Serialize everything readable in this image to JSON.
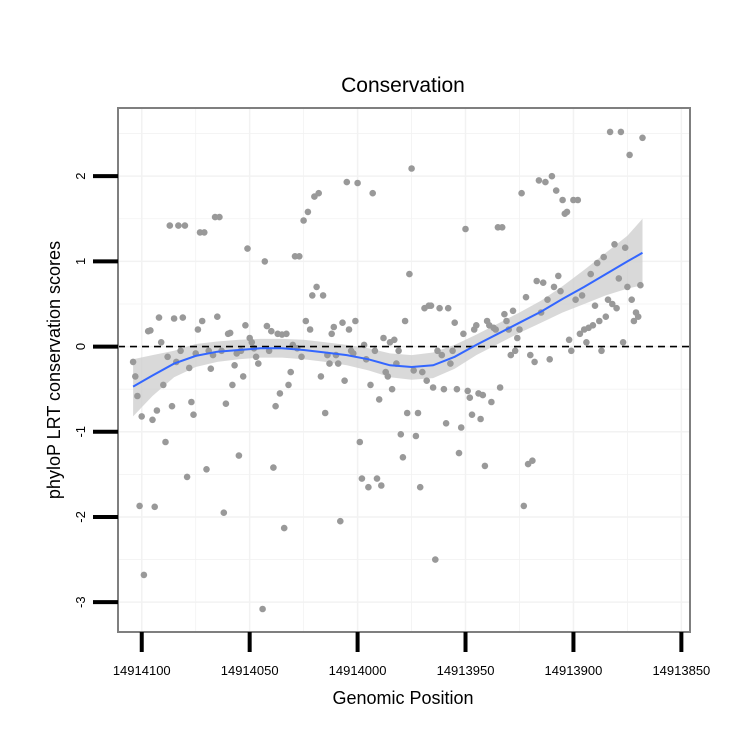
{
  "chart_data": {
    "type": "scatter",
    "title": "Conservation",
    "xlabel": "Genomic Position",
    "ylabel": "phyloP LRT conservation scores",
    "x_reversed": true,
    "xlim": [
      14914111,
      14913846
    ],
    "ylim": [
      -3.35,
      2.8
    ],
    "x_ticks": [
      14914100,
      14914050,
      14914000,
      14913950,
      14913900,
      14913850
    ],
    "x_tick_labels": [
      "14914100",
      "14914050",
      "14914000",
      "14913950",
      "14913900",
      "14913850"
    ],
    "y_ticks": [
      -3,
      -2,
      -1,
      0,
      1,
      2
    ],
    "y_tick_labels": [
      "-3",
      "-2",
      "-1",
      "0",
      "1",
      "2"
    ],
    "grid": true,
    "reference_line": {
      "y": 0,
      "style": "dashed",
      "color": "#000000"
    },
    "colors": {
      "points": "#999999",
      "smooth": "#3366ff",
      "band": "#cccccc",
      "panel_border": "#7f7f7f",
      "grid": "#f2f2f2"
    },
    "points": [
      [
        14914104,
        -0.18
      ],
      [
        14914103,
        -0.35
      ],
      [
        14914102,
        -0.58
      ],
      [
        14914101,
        -1.87
      ],
      [
        14914100,
        -0.82
      ],
      [
        14914099,
        -2.68
      ],
      [
        14914097,
        0.18
      ],
      [
        14914096,
        0.19
      ],
      [
        14914095,
        -0.86
      ],
      [
        14914094,
        -1.88
      ],
      [
        14914093,
        -0.75
      ],
      [
        14914092,
        0.34
      ],
      [
        14914091,
        0.05
      ],
      [
        14914090,
        -0.45
      ],
      [
        14914089,
        -1.12
      ],
      [
        14914088,
        -0.12
      ],
      [
        14914087,
        1.42
      ],
      [
        14914086,
        -0.7
      ],
      [
        14914085,
        0.33
      ],
      [
        14914084,
        -0.18
      ],
      [
        14914083,
        1.42
      ],
      [
        14914082,
        -0.05
      ],
      [
        14914081,
        0.34
      ],
      [
        14914080,
        1.42
      ],
      [
        14914079,
        -1.53
      ],
      [
        14914078,
        -0.25
      ],
      [
        14914077,
        -0.65
      ],
      [
        14914076,
        -0.8
      ],
      [
        14914075,
        -0.08
      ],
      [
        14914074,
        0.2
      ],
      [
        14914073,
        1.34
      ],
      [
        14914072,
        0.3
      ],
      [
        14914071,
        1.34
      ],
      [
        14914070,
        -1.44
      ],
      [
        14914069,
        -0.05
      ],
      [
        14914068,
        -0.26
      ],
      [
        14914067,
        -0.1
      ],
      [
        14914066,
        1.52
      ],
      [
        14914065,
        0.35
      ],
      [
        14914064,
        1.52
      ],
      [
        14914063,
        -0.05
      ],
      [
        14914062,
        -1.95
      ],
      [
        14914061,
        -0.67
      ],
      [
        14914060,
        0.15
      ],
      [
        14914059,
        0.16
      ],
      [
        14914058,
        -0.45
      ],
      [
        14914057,
        -0.22
      ],
      [
        14914056,
        -0.08
      ],
      [
        14914055,
        -1.28
      ],
      [
        14914054,
        -0.05
      ],
      [
        14914053,
        -0.35
      ],
      [
        14914052,
        0.25
      ],
      [
        14914051,
        1.15
      ],
      [
        14914050,
        0.1
      ],
      [
        14914049,
        0.05
      ],
      [
        14914048,
        -0.02
      ],
      [
        14914047,
        -0.12
      ],
      [
        14914046,
        -0.2
      ],
      [
        14914044,
        -3.08
      ],
      [
        14914043,
        1.0
      ],
      [
        14914042,
        0.24
      ],
      [
        14914041,
        -0.05
      ],
      [
        14914040,
        0.18
      ],
      [
        14914039,
        -1.42
      ],
      [
        14914038,
        -0.7
      ],
      [
        14914037,
        0.15
      ],
      [
        14914036,
        -0.55
      ],
      [
        14914035,
        0.14
      ],
      [
        14914034,
        -2.13
      ],
      [
        14914033,
        0.15
      ],
      [
        14914032,
        -0.45
      ],
      [
        14914031,
        -0.3
      ],
      [
        14914030,
        0.02
      ],
      [
        14914029,
        1.06
      ],
      [
        14914028,
        -0.02
      ],
      [
        14914027,
        1.06
      ],
      [
        14914026,
        -0.12
      ],
      [
        14914025,
        1.48
      ],
      [
        14914024,
        0.3
      ],
      [
        14914023,
        1.58
      ],
      [
        14914022,
        0.2
      ],
      [
        14914021,
        0.6
      ],
      [
        14914020,
        1.76
      ],
      [
        14914019,
        0.7
      ],
      [
        14914018,
        1.8
      ],
      [
        14914017,
        -0.35
      ],
      [
        14914016,
        0.6
      ],
      [
        14914015,
        -0.78
      ],
      [
        14914014,
        -0.1
      ],
      [
        14914013,
        -0.2
      ],
      [
        14914012,
        0.15
      ],
      [
        14914011,
        0.23
      ],
      [
        14914010,
        -0.1
      ],
      [
        14914009,
        -0.2
      ],
      [
        14914008,
        -2.05
      ],
      [
        14914007,
        0.28
      ],
      [
        14914006,
        -0.4
      ],
      [
        14914005,
        1.93
      ],
      [
        14914004,
        0.2
      ],
      [
        14914003,
        -0.05
      ],
      [
        14914002,
        -0.08
      ],
      [
        14914001,
        0.3
      ],
      [
        14914000,
        1.92
      ],
      [
        14913999,
        -1.12
      ],
      [
        14913998,
        -1.55
      ],
      [
        14913997,
        0.02
      ],
      [
        14913996,
        -0.15
      ],
      [
        14913995,
        -1.65
      ],
      [
        14913994,
        -0.45
      ],
      [
        14913993,
        1.8
      ],
      [
        14913992,
        -0.05
      ],
      [
        14913991,
        -1.55
      ],
      [
        14913990,
        -0.62
      ],
      [
        14913989,
        -1.63
      ],
      [
        14913988,
        0.1
      ],
      [
        14913987,
        -0.3
      ],
      [
        14913986,
        -0.35
      ],
      [
        14913985,
        0.05
      ],
      [
        14913984,
        -0.5
      ],
      [
        14913983,
        0.08
      ],
      [
        14913982,
        -0.2
      ],
      [
        14913981,
        -0.05
      ],
      [
        14913980,
        -1.03
      ],
      [
        14913979,
        -1.3
      ],
      [
        14913978,
        0.3
      ],
      [
        14913977,
        -0.78
      ],
      [
        14913976,
        0.85
      ],
      [
        14913975,
        2.09
      ],
      [
        14913974,
        -0.28
      ],
      [
        14913973,
        -1.05
      ],
      [
        14913972,
        -0.78
      ],
      [
        14913971,
        -1.65
      ],
      [
        14913970,
        -0.3
      ],
      [
        14913969,
        0.45
      ],
      [
        14913968,
        -0.4
      ],
      [
        14913967,
        0.48
      ],
      [
        14913966,
        0.48
      ],
      [
        14913965,
        -0.48
      ],
      [
        14913964,
        -2.5
      ],
      [
        14913963,
        -0.05
      ],
      [
        14913962,
        0.45
      ],
      [
        14913961,
        -0.1
      ],
      [
        14913960,
        -0.5
      ],
      [
        14913959,
        -0.9
      ],
      [
        14913958,
        0.45
      ],
      [
        14913957,
        -0.2
      ],
      [
        14913956,
        -0.05
      ],
      [
        14913955,
        0.28
      ],
      [
        14913954,
        -0.5
      ],
      [
        14913953,
        -1.25
      ],
      [
        14913952,
        -0.95
      ],
      [
        14913951,
        0.15
      ],
      [
        14913950,
        1.38
      ],
      [
        14913949,
        -0.52
      ],
      [
        14913948,
        -0.6
      ],
      [
        14913947,
        -0.8
      ],
      [
        14913946,
        0.2
      ],
      [
        14913945,
        0.25
      ],
      [
        14913944,
        -0.55
      ],
      [
        14913943,
        -0.85
      ],
      [
        14913942,
        -0.57
      ],
      [
        14913941,
        -1.4
      ],
      [
        14913940,
        0.3
      ],
      [
        14913939,
        0.25
      ],
      [
        14913938,
        -0.65
      ],
      [
        14913937,
        0.22
      ],
      [
        14913936,
        0.2
      ],
      [
        14913935,
        1.4
      ],
      [
        14913934,
        -0.48
      ],
      [
        14913933,
        1.4
      ],
      [
        14913932,
        0.38
      ],
      [
        14913931,
        0.3
      ],
      [
        14913930,
        0.2
      ],
      [
        14913929,
        -0.1
      ],
      [
        14913928,
        0.42
      ],
      [
        14913927,
        -0.05
      ],
      [
        14913926,
        0.1
      ],
      [
        14913925,
        0.2
      ],
      [
        14913924,
        1.8
      ],
      [
        14913923,
        -1.87
      ],
      [
        14913922,
        0.58
      ],
      [
        14913921,
        -1.38
      ],
      [
        14913920,
        -0.1
      ],
      [
        14913919,
        -1.34
      ],
      [
        14913918,
        -0.18
      ],
      [
        14913917,
        0.77
      ],
      [
        14913916,
        1.95
      ],
      [
        14913915,
        0.4
      ],
      [
        14913914,
        0.75
      ],
      [
        14913913,
        1.93
      ],
      [
        14913912,
        0.55
      ],
      [
        14913911,
        -0.15
      ],
      [
        14913910,
        2.0
      ],
      [
        14913909,
        0.7
      ],
      [
        14913908,
        1.83
      ],
      [
        14913907,
        0.83
      ],
      [
        14913906,
        0.65
      ],
      [
        14913905,
        1.72
      ],
      [
        14913904,
        1.56
      ],
      [
        14913903,
        1.58
      ],
      [
        14913902,
        0.08
      ],
      [
        14913901,
        -0.05
      ],
      [
        14913900,
        1.72
      ],
      [
        14913899,
        0.55
      ],
      [
        14913898,
        1.72
      ],
      [
        14913897,
        0.15
      ],
      [
        14913896,
        0.6
      ],
      [
        14913895,
        0.2
      ],
      [
        14913894,
        0.05
      ],
      [
        14913893,
        0.22
      ],
      [
        14913892,
        0.85
      ],
      [
        14913891,
        0.25
      ],
      [
        14913890,
        0.48
      ],
      [
        14913889,
        0.98
      ],
      [
        14913888,
        0.3
      ],
      [
        14913887,
        -0.05
      ],
      [
        14913886,
        1.05
      ],
      [
        14913885,
        0.35
      ],
      [
        14913884,
        0.55
      ],
      [
        14913883,
        2.52
      ],
      [
        14913882,
        0.5
      ],
      [
        14913881,
        1.2
      ],
      [
        14913880,
        0.45
      ],
      [
        14913879,
        0.8
      ],
      [
        14913878,
        2.52
      ],
      [
        14913877,
        0.05
      ],
      [
        14913876,
        1.16
      ],
      [
        14913875,
        0.7
      ],
      [
        14913874,
        2.25
      ],
      [
        14913873,
        0.55
      ],
      [
        14913872,
        0.3
      ],
      [
        14913871,
        0.4
      ],
      [
        14913870,
        0.35
      ],
      [
        14913869,
        0.72
      ],
      [
        14913868,
        2.45
      ]
    ],
    "smooth": {
      "x": [
        14914104,
        14914095,
        14914085,
        14914075,
        14914065,
        14914055,
        14914045,
        14914035,
        14914025,
        14914015,
        14914005,
        14913995,
        14913985,
        14913975,
        14913965,
        14913955,
        14913945,
        14913935,
        14913925,
        14913915,
        14913905,
        14913895,
        14913885,
        14913875,
        14913868
      ],
      "y": [
        -0.47,
        -0.34,
        -0.2,
        -0.11,
        -0.06,
        -0.04,
        -0.02,
        -0.02,
        -0.04,
        -0.07,
        -0.1,
        -0.15,
        -0.22,
        -0.24,
        -0.22,
        -0.12,
        0.02,
        0.15,
        0.28,
        0.41,
        0.56,
        0.7,
        0.85,
        1.0,
        1.1
      ],
      "lower": [
        -0.82,
        -0.58,
        -0.36,
        -0.24,
        -0.18,
        -0.15,
        -0.13,
        -0.13,
        -0.15,
        -0.18,
        -0.22,
        -0.28,
        -0.36,
        -0.39,
        -0.37,
        -0.26,
        -0.1,
        0.03,
        0.16,
        0.28,
        0.4,
        0.5,
        0.6,
        0.68,
        0.72
      ],
      "upper": [
        -0.15,
        -0.1,
        -0.05,
        0.03,
        0.06,
        0.08,
        0.09,
        0.09,
        0.08,
        0.05,
        0.02,
        -0.02,
        -0.08,
        -0.1,
        -0.07,
        0.02,
        0.14,
        0.27,
        0.4,
        0.54,
        0.71,
        0.9,
        1.1,
        1.3,
        1.5
      ]
    }
  }
}
